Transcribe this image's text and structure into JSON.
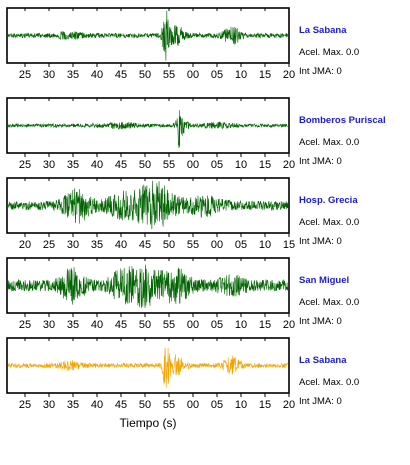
{
  "chart_data": {
    "type": "line",
    "x_axis_label": "Tiempo (s)",
    "panels": [
      {
        "station": "La Sabana",
        "accel_label": "Acel. Max. 0.0",
        "jma_label": "Int JMA: 0",
        "series_color": "#006400",
        "station_color": "#1a1ad6",
        "tick_labels": [
          "25",
          "30",
          "35",
          "40",
          "45",
          "50",
          "55",
          "00",
          "05",
          "10",
          "15",
          "20"
        ],
        "noise_level": 0.09,
        "bursts": [
          {
            "center": 0.565,
            "width": 0.012,
            "amp": 0.95
          },
          {
            "center": 0.6,
            "width": 0.03,
            "amp": 0.35
          },
          {
            "center": 0.8,
            "width": 0.03,
            "amp": 0.3
          },
          {
            "center": 0.22,
            "width": 0.04,
            "amp": 0.12
          }
        ]
      },
      {
        "station": "Bomberos Puriscal",
        "accel_label": "Acel. Max. 0.0",
        "jma_label": "Int JMA: 0",
        "series_color": "#006400",
        "station_color": "#1a1ad6",
        "tick_labels": [
          "25",
          "30",
          "35",
          "40",
          "45",
          "50",
          "55",
          "00",
          "05",
          "10",
          "15",
          "20"
        ],
        "noise_level": 0.07,
        "bursts": [
          {
            "center": 0.612,
            "width": 0.006,
            "amp": 0.95
          },
          {
            "center": 0.62,
            "width": 0.02,
            "amp": 0.35
          },
          {
            "center": 0.4,
            "width": 0.06,
            "amp": 0.08
          },
          {
            "center": 0.75,
            "width": 0.05,
            "amp": 0.08
          }
        ]
      },
      {
        "station": "Hosp. Grecia",
        "accel_label": "Acel. Max. 0.0",
        "jma_label": "Int JMA: 0",
        "series_color": "#006400",
        "station_color": "#1a1ad6",
        "tick_labels": [
          "20",
          "25",
          "30",
          "35",
          "40",
          "45",
          "50",
          "55",
          "00",
          "05",
          "10",
          "15"
        ],
        "noise_level": 0.18,
        "bursts": [
          {
            "center": 0.25,
            "width": 0.05,
            "amp": 0.55
          },
          {
            "center": 0.52,
            "width": 0.07,
            "amp": 0.85
          },
          {
            "center": 0.4,
            "width": 0.05,
            "amp": 0.35
          },
          {
            "center": 0.7,
            "width": 0.06,
            "amp": 0.3
          }
        ]
      },
      {
        "station": "San Miguel",
        "accel_label": "Acel. Max. 0.0",
        "jma_label": "Int JMA: 0",
        "series_color": "#006400",
        "station_color": "#1a1ad6",
        "tick_labels": [
          "25",
          "30",
          "35",
          "40",
          "45",
          "50",
          "55",
          "00",
          "05",
          "10",
          "15",
          "20"
        ],
        "noise_level": 0.22,
        "bursts": [
          {
            "center": 0.23,
            "width": 0.04,
            "amp": 0.55
          },
          {
            "center": 0.48,
            "width": 0.06,
            "amp": 0.7
          },
          {
            "center": 0.6,
            "width": 0.05,
            "amp": 0.55
          },
          {
            "center": 0.4,
            "width": 0.04,
            "amp": 0.35
          },
          {
            "center": 0.8,
            "width": 0.05,
            "amp": 0.25
          }
        ]
      },
      {
        "station": "La Sabana",
        "accel_label": "Acel. Max. 0.0",
        "jma_label": "Int JMA: 0",
        "series_color": "#f5a300",
        "station_color": "#1a1ad6",
        "tick_labels": [
          "25",
          "30",
          "35",
          "40",
          "45",
          "50",
          "55",
          "00",
          "05",
          "10",
          "15",
          "20"
        ],
        "noise_level": 0.09,
        "bursts": [
          {
            "center": 0.565,
            "width": 0.012,
            "amp": 0.95
          },
          {
            "center": 0.6,
            "width": 0.03,
            "amp": 0.35
          },
          {
            "center": 0.8,
            "width": 0.03,
            "amp": 0.3
          },
          {
            "center": 0.22,
            "width": 0.04,
            "amp": 0.12
          }
        ]
      }
    ]
  }
}
